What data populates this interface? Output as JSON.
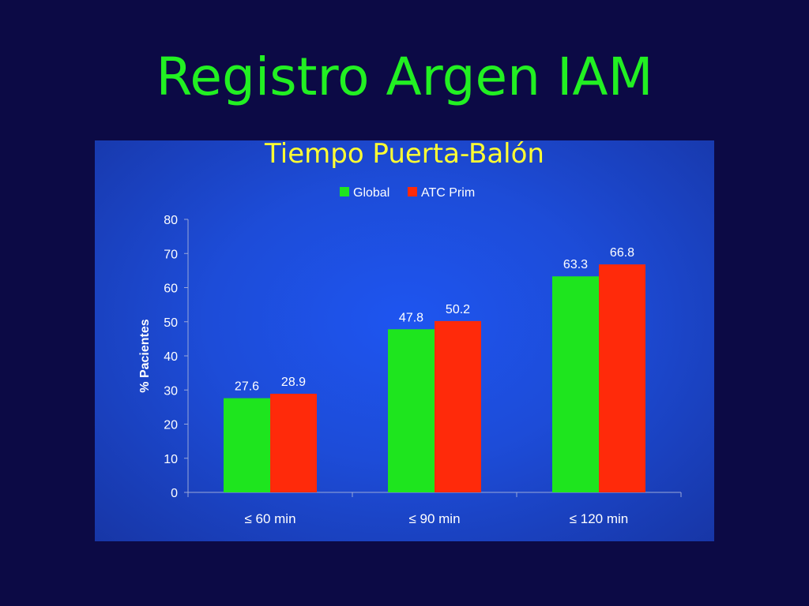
{
  "slide": {
    "title": "Registro Argen IAM"
  },
  "colors": {
    "background": "#0c0a45",
    "title": "#22f022",
    "panel": "#1d4cd8"
  },
  "chart_data": {
    "type": "bar",
    "title": "Tiempo Puerta-Balón",
    "xlabel": "",
    "ylabel": "% Pacientes",
    "categories": [
      "≤ 60 min",
      "≤ 90 min",
      "≤ 120 min"
    ],
    "series": [
      {
        "name": "Global",
        "color": "#1ee51e",
        "values": [
          27.6,
          47.8,
          63.3
        ]
      },
      {
        "name": "ATC Prim",
        "color": "#ff2a0a",
        "values": [
          28.9,
          50.2,
          66.8
        ]
      }
    ],
    "ylim": [
      0,
      80
    ],
    "yticks": [
      0,
      10,
      20,
      30,
      40,
      50,
      60,
      70,
      80
    ],
    "legend_position": "top",
    "grid": false
  }
}
